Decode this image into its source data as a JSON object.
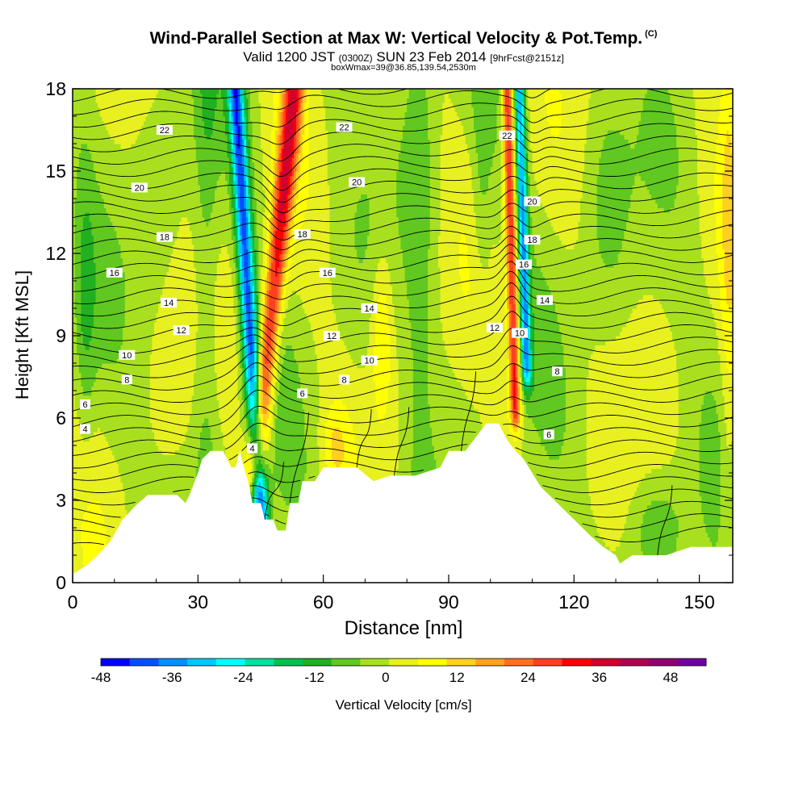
{
  "title": {
    "main": "Wind-Parallel Section at Max W: Vertical Velocity & Pot.Temp.",
    "copyright": "(C)"
  },
  "subtitle": {
    "prefix": "Valid 1200 JST",
    "utc": "(0300Z)",
    "date": "SUN 23 Feb 2014",
    "fcst": "[9hrFcst@2151z]"
  },
  "line3": "boxWmax=39@36.85,139.54,2530m",
  "chart_data": {
    "type": "heatmap",
    "xlabel": "Distance [nm]",
    "ylabel": "Height [Kft MSL]",
    "xlim": [
      0,
      158
    ],
    "ylim": [
      0,
      18
    ],
    "x_ticks": [
      0,
      30,
      60,
      90,
      120,
      150
    ],
    "y_ticks": [
      0,
      3,
      6,
      9,
      12,
      15,
      18
    ],
    "colorbar": {
      "label": "Vertical Velocity [cm/s]",
      "tick_values": [
        -48,
        -36,
        -24,
        -12,
        0,
        12,
        24,
        36,
        48
      ],
      "levels": [
        -48,
        -42,
        -36,
        -30,
        -24,
        -18,
        -12,
        -6,
        0,
        6,
        12,
        18,
        24,
        30,
        36,
        42,
        48,
        54
      ],
      "colors": [
        "#0000ff",
        "#0050ff",
        "#0090ff",
        "#00c8ff",
        "#00ffff",
        "#00e0a0",
        "#00c050",
        "#20b020",
        "#60c820",
        "#a8e020",
        "#e8f020",
        "#ffff00",
        "#ffd020",
        "#ffa020",
        "#ff7020",
        "#ff4020",
        "#ff0000",
        "#d00030",
        "#b00050",
        "#900070",
        "#7000a0"
      ]
    },
    "updrafts": [
      {
        "peak_w": 40,
        "x_at_ground": 41,
        "x_at_top": 53,
        "base_kft": 4.5
      },
      {
        "peak_w": 39,
        "x_at_ground": 107,
        "x_at_top": 104,
        "base_kft": 6.5
      }
    ],
    "downdrafts": [
      {
        "peak_w": -48,
        "x_at_ground": 46,
        "x_at_top": 39
      },
      {
        "peak_w": -40,
        "x_at_ground": 110,
        "x_at_top": 107
      }
    ],
    "terrain_kft": [
      [
        0,
        0.3
      ],
      [
        3,
        0.6
      ],
      [
        6,
        1.0
      ],
      [
        9,
        1.5
      ],
      [
        12,
        2.3
      ],
      [
        15,
        2.8
      ],
      [
        18,
        3.2
      ],
      [
        20,
        3.2
      ],
      [
        25,
        3.2
      ],
      [
        27,
        2.9
      ],
      [
        28,
        3.2
      ],
      [
        30,
        4.0
      ],
      [
        31,
        4.5
      ],
      [
        33,
        4.8
      ],
      [
        36,
        4.8
      ],
      [
        38,
        4.2
      ],
      [
        39,
        4.2
      ],
      [
        40,
        4.8
      ],
      [
        41,
        4.2
      ],
      [
        42,
        3.7
      ],
      [
        43,
        2.9
      ],
      [
        45,
        2.9
      ],
      [
        46,
        2.3
      ],
      [
        48,
        2.3
      ],
      [
        49,
        1.9
      ],
      [
        51,
        1.9
      ],
      [
        52,
        2.9
      ],
      [
        54,
        2.9
      ],
      [
        55,
        3.7
      ],
      [
        58,
        3.7
      ],
      [
        60,
        4.2
      ],
      [
        68,
        4.2
      ],
      [
        72,
        3.7
      ],
      [
        76,
        3.9
      ],
      [
        82,
        3.9
      ],
      [
        88,
        4.2
      ],
      [
        90,
        4.8
      ],
      [
        94,
        4.8
      ],
      [
        96,
        5.2
      ],
      [
        99,
        5.8
      ],
      [
        102,
        5.8
      ],
      [
        104,
        5.2
      ],
      [
        106,
        4.8
      ],
      [
        108,
        4.5
      ],
      [
        110,
        4.0
      ],
      [
        112,
        3.5
      ],
      [
        116,
        2.9
      ],
      [
        120,
        2.3
      ],
      [
        124,
        1.7
      ],
      [
        127,
        1.3
      ],
      [
        130,
        1.0
      ],
      [
        131,
        0.7
      ],
      [
        134,
        1.0
      ],
      [
        142,
        1.0
      ],
      [
        148,
        1.3
      ],
      [
        158,
        1.3
      ]
    ],
    "isentropes": {
      "values": [
        4,
        6,
        8,
        10,
        12,
        14,
        16,
        18,
        20,
        22
      ],
      "heights_kft_at_left": [
        5.6,
        6.5,
        7.4,
        8.3,
        9.3,
        10.2,
        11.3,
        12.6,
        14.4,
        16.4
      ],
      "spacing_kft": 0.46
    },
    "contour_labels": [
      {
        "text": "22",
        "x": 22,
        "y": 16.5
      },
      {
        "text": "22",
        "x": 65,
        "y": 16.6
      },
      {
        "text": "22",
        "x": 104,
        "y": 16.3
      },
      {
        "text": "20",
        "x": 16,
        "y": 14.4
      },
      {
        "text": "20",
        "x": 68,
        "y": 14.6
      },
      {
        "text": "20",
        "x": 110,
        "y": 13.9
      },
      {
        "text": "18",
        "x": 22,
        "y": 12.6
      },
      {
        "text": "18",
        "x": 55,
        "y": 12.7
      },
      {
        "text": "18",
        "x": 110,
        "y": 12.5
      },
      {
        "text": "16",
        "x": 10,
        "y": 11.3
      },
      {
        "text": "16",
        "x": 61,
        "y": 11.3
      },
      {
        "text": "16",
        "x": 108,
        "y": 11.6
      },
      {
        "text": "14",
        "x": 23,
        "y": 10.2
      },
      {
        "text": "14",
        "x": 71,
        "y": 10.0
      },
      {
        "text": "14",
        "x": 113,
        "y": 10.3
      },
      {
        "text": "12",
        "x": 26,
        "y": 9.2
      },
      {
        "text": "12",
        "x": 62,
        "y": 9.0
      },
      {
        "text": "12",
        "x": 101,
        "y": 9.3
      },
      {
        "text": "10",
        "x": 13,
        "y": 8.3
      },
      {
        "text": "10",
        "x": 71,
        "y": 8.1
      },
      {
        "text": "10",
        "x": 107,
        "y": 9.1
      },
      {
        "text": "8",
        "x": 13,
        "y": 7.4
      },
      {
        "text": "8",
        "x": 65,
        "y": 7.4
      },
      {
        "text": "8",
        "x": 116,
        "y": 7.7
      },
      {
        "text": "6",
        "x": 3,
        "y": 6.5
      },
      {
        "text": "6",
        "x": 55,
        "y": 6.9
      },
      {
        "text": "6",
        "x": 114,
        "y": 5.4
      },
      {
        "text": "4",
        "x": 3,
        "y": 5.6
      },
      {
        "text": "4",
        "x": 43,
        "y": 4.9
      }
    ]
  }
}
